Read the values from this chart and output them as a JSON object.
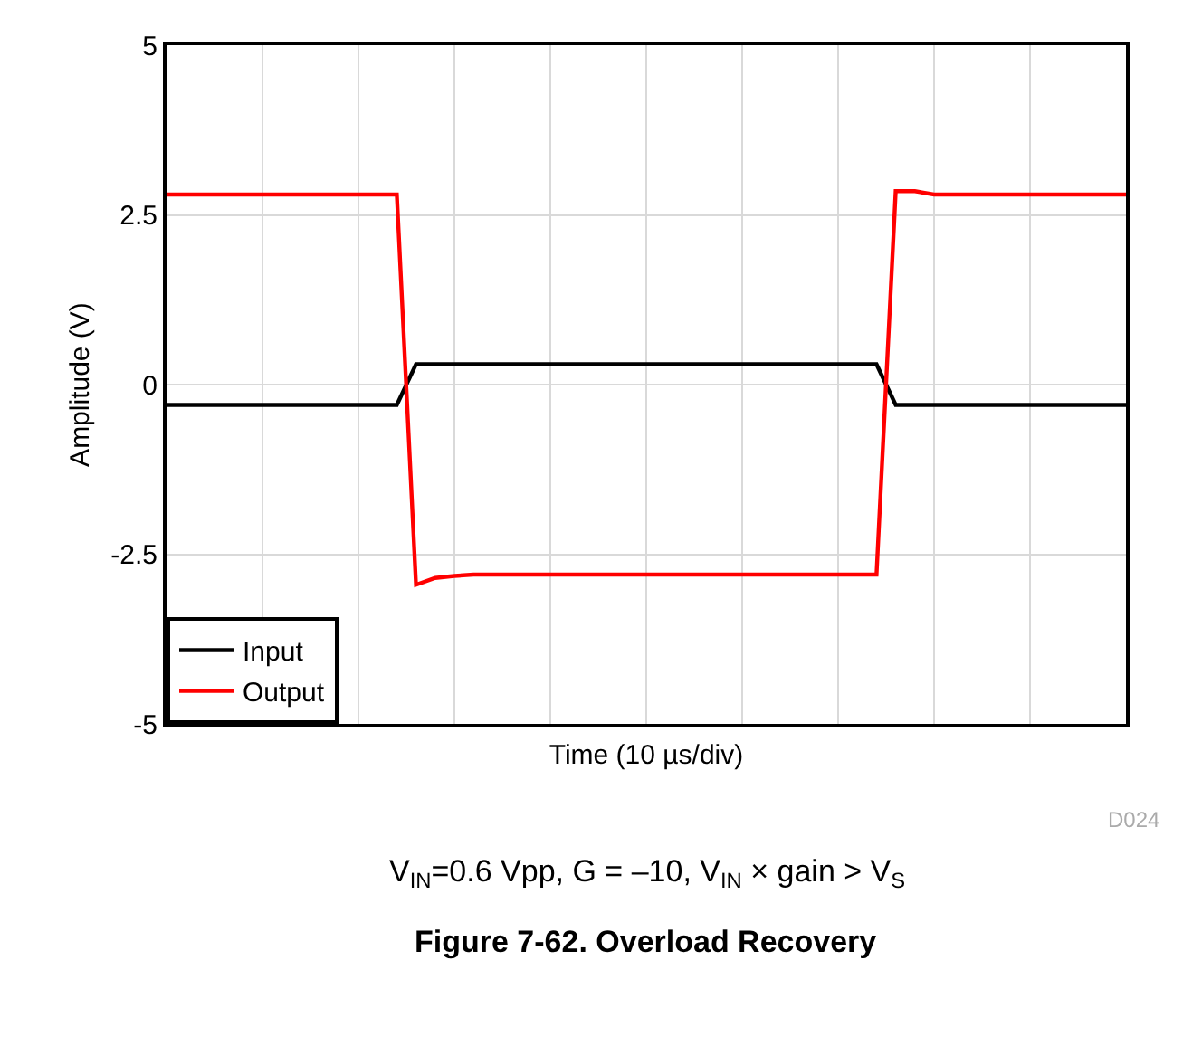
{
  "chart_data": {
    "type": "line",
    "xlabel": "Time (10 µs/div)",
    "ylabel": "Amplitude (V)",
    "categories": [
      null,
      null,
      null,
      null,
      null,
      null,
      null,
      null,
      null,
      null,
      null,
      null,
      null,
      null,
      null,
      null,
      null,
      null,
      null,
      null,
      null,
      null,
      null,
      null,
      null,
      null,
      null,
      null,
      null,
      null,
      null,
      null,
      null,
      null,
      null,
      null,
      null,
      null,
      null,
      null,
      null,
      null,
      null,
      null,
      null,
      null,
      null,
      null,
      null,
      null,
      null
    ],
    "ylim": [
      -5,
      5
    ],
    "yticks": [
      5,
      2.5,
      0,
      -2.5,
      -5
    ],
    "grid": true,
    "legend": "bottom left",
    "line_style": "solid",
    "marker": "none",
    "series": [
      {
        "name": "Input",
        "color": "#000000",
        "values": [
          -0.3,
          -0.3,
          -0.3,
          -0.3,
          -0.3,
          -0.3,
          -0.3,
          -0.3,
          -0.3,
          -0.3,
          -0.3,
          -0.3,
          -0.3,
          0.3,
          0.3,
          0.3,
          0.3,
          0.3,
          0.3,
          0.3,
          0.3,
          0.3,
          0.3,
          0.3,
          0.3,
          0.3,
          0.3,
          0.3,
          0.3,
          0.3,
          0.3,
          0.3,
          0.3,
          0.3,
          0.3,
          0.3,
          0.3,
          0.3,
          -0.3,
          -0.3,
          -0.3,
          -0.3,
          -0.3,
          -0.3,
          -0.3,
          -0.3,
          -0.3,
          -0.3,
          -0.3,
          -0.3,
          -0.3
        ]
      },
      {
        "name": "Output",
        "color": "#ff0000",
        "values": [
          2.8,
          2.8,
          2.8,
          2.8,
          2.8,
          2.8,
          2.8,
          2.8,
          2.8,
          2.8,
          2.8,
          2.8,
          2.8,
          -2.95,
          -2.85,
          -2.82,
          -2.8,
          -2.8,
          -2.8,
          -2.8,
          -2.8,
          -2.8,
          -2.8,
          -2.8,
          -2.8,
          -2.8,
          -2.8,
          -2.8,
          -2.8,
          -2.8,
          -2.8,
          -2.8,
          -2.8,
          -2.8,
          -2.8,
          -2.8,
          -2.8,
          -2.8,
          2.85,
          2.85,
          2.8,
          2.8,
          2.8,
          2.8,
          2.8,
          2.8,
          2.8,
          2.8,
          2.8,
          2.8,
          2.8
        ]
      }
    ],
    "annotations": [
      "D024",
      "V$_{IN}$=0.6 Vpp, G = –10, V$_{IN}$ × gain > V$_{S}$",
      "Figure 7-62. Overload Recovery"
    ]
  }
}
